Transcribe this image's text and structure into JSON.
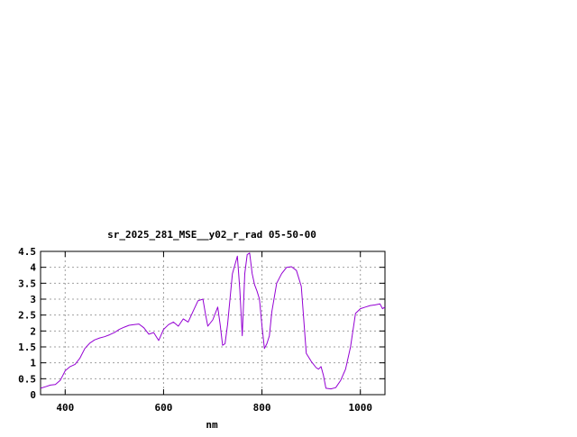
{
  "chart_data": {
    "type": "line",
    "title": "sr_2025_281_MSE__y02_r_rad 05-50-00",
    "xlabel": "nm",
    "ylabel": "",
    "xlim": [
      350,
      1050
    ],
    "ylim": [
      0,
      4.5
    ],
    "x_ticks": [
      400,
      600,
      800,
      1000
    ],
    "y_ticks": [
      0,
      0.5,
      1,
      1.5,
      2,
      2.5,
      3,
      3.5,
      4,
      4.5
    ],
    "x_tick_labels": [
      "400",
      "600",
      "800",
      "1000"
    ],
    "y_tick_labels": [
      "0",
      "0.5",
      "1",
      "1.5",
      "2",
      "2.5",
      "3",
      "3.5",
      "4",
      "4.5"
    ],
    "grid": true,
    "legend": false,
    "series": [
      {
        "color": "#9400d3",
        "x": [
          350,
          360,
          370,
          380,
          390,
          395,
          400,
          410,
          420,
          430,
          440,
          450,
          460,
          470,
          480,
          490,
          500,
          510,
          520,
          530,
          540,
          550,
          560,
          570,
          580,
          590,
          600,
          610,
          620,
          630,
          640,
          650,
          660,
          670,
          680,
          685,
          690,
          700,
          710,
          715,
          720,
          725,
          730,
          740,
          750,
          755,
          760,
          765,
          770,
          775,
          780,
          785,
          790,
          795,
          800,
          805,
          810,
          815,
          820,
          830,
          840,
          850,
          860,
          870,
          880,
          890,
          900,
          910,
          915,
          920,
          925,
          930,
          940,
          950,
          960,
          970,
          980,
          990,
          1000,
          1010,
          1020,
          1030,
          1040,
          1045,
          1050
        ],
        "y": [
          0.2,
          0.25,
          0.3,
          0.32,
          0.45,
          0.6,
          0.75,
          0.88,
          0.95,
          1.15,
          1.45,
          1.62,
          1.72,
          1.78,
          1.82,
          1.88,
          1.95,
          2.05,
          2.12,
          2.18,
          2.2,
          2.22,
          2.1,
          1.9,
          1.95,
          1.7,
          2.05,
          2.2,
          2.28,
          2.15,
          2.38,
          2.28,
          2.62,
          2.95,
          3.0,
          2.55,
          2.15,
          2.35,
          2.75,
          2.2,
          1.55,
          1.6,
          2.2,
          3.8,
          4.35,
          3.3,
          1.85,
          3.8,
          4.4,
          4.45,
          3.8,
          3.45,
          3.25,
          3.0,
          2.15,
          1.45,
          1.6,
          1.85,
          2.6,
          3.5,
          3.8,
          4.0,
          4.02,
          3.9,
          3.4,
          1.3,
          1.05,
          0.85,
          0.8,
          0.88,
          0.6,
          0.2,
          0.18,
          0.22,
          0.45,
          0.8,
          1.5,
          2.55,
          2.7,
          2.75,
          2.8,
          2.82,
          2.85,
          2.7,
          2.75
        ]
      }
    ]
  }
}
